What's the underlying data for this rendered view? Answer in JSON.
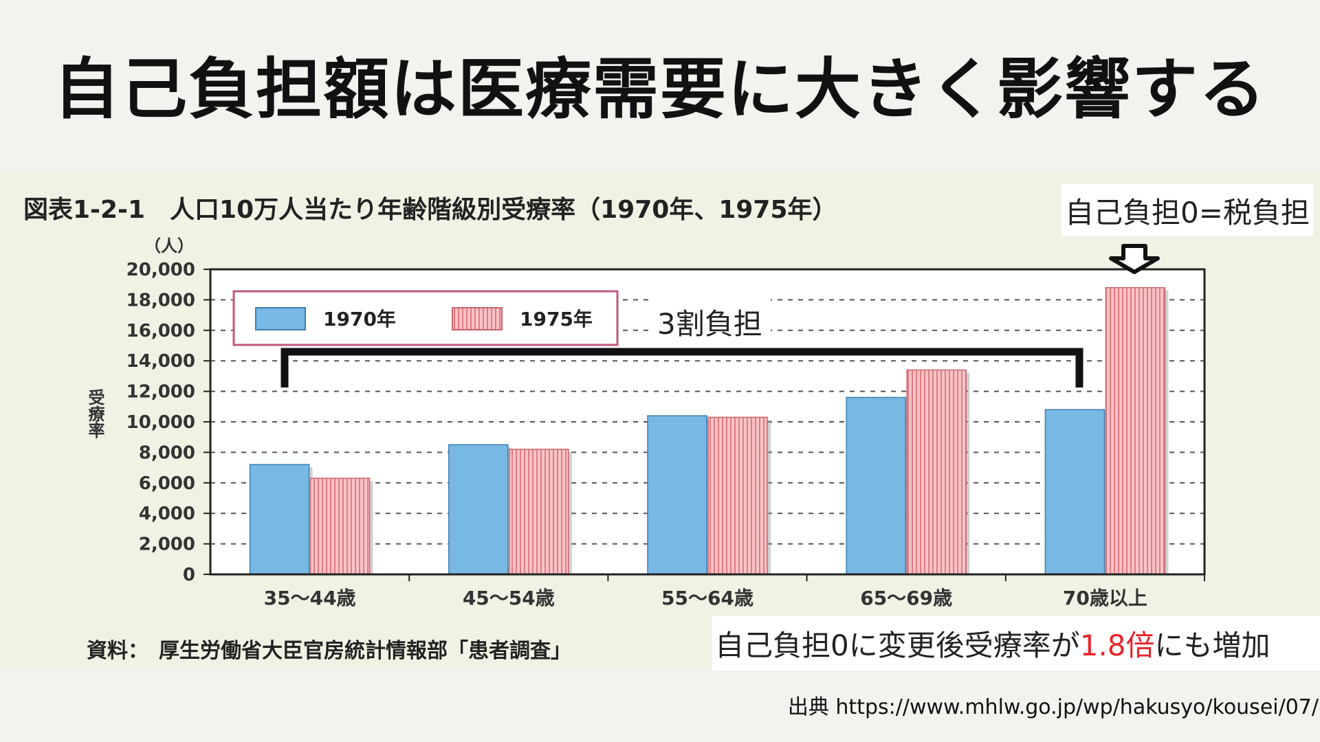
{
  "slide": {
    "title": "自己負担額は医療需要に大きく影響する",
    "source_url": "出典 https://www.mhlw.go.jp/wp/hakusyo/kousei/07/"
  },
  "annotations": {
    "zero_burden": "自己負担0=税負担",
    "thirty_percent": "3割負担",
    "increase_prefix": "自己負担0に変更後受療率が",
    "increase_highlight": "1.8倍",
    "increase_suffix": "にも増加"
  },
  "colors": {
    "bar_1970": "#77b8e4",
    "bar_1975": "#f4a8ad",
    "highlight": "#e3262b"
  },
  "chart_data": {
    "type": "bar",
    "title": "図表1-2-1　人口10万人当たり年齢階級別受療率（1970年、1975年）",
    "ylabel": "受療率",
    "yunit": "（人）",
    "ylim": [
      0,
      20000
    ],
    "yticks": [
      "0",
      "2,000",
      "4,000",
      "6,000",
      "8,000",
      "10,000",
      "12,000",
      "14,000",
      "16,000",
      "18,000",
      "20,000"
    ],
    "categories": [
      "35～44歳",
      "45～54歳",
      "55～64歳",
      "65～69歳",
      "70歳以上"
    ],
    "series": [
      {
        "name": "1970年",
        "values": [
          7200,
          8500,
          10400,
          11600,
          10800
        ]
      },
      {
        "name": "1975年",
        "values": [
          6300,
          8200,
          10300,
          13400,
          18800
        ]
      }
    ],
    "grid": true,
    "legend": "top-left",
    "source": "資料：　厚生労働省大臣官房統計情報部「患者調査」"
  }
}
